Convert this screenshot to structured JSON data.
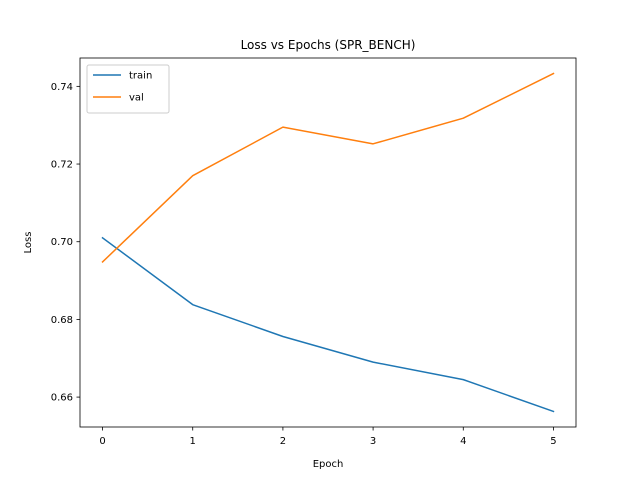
{
  "chart_data": {
    "type": "line",
    "title": "Loss vs Epochs (SPR_BENCH)",
    "xlabel": "Epoch",
    "ylabel": "Loss",
    "x": [
      0,
      1,
      2,
      3,
      4,
      5
    ],
    "xlim": [
      -0.25,
      5.25
    ],
    "ylim": [
      0.6523,
      0.7473
    ],
    "xticks": [
      "0",
      "1",
      "2",
      "3",
      "4",
      "5"
    ],
    "yticks": [
      "0.66",
      "0.68",
      "0.70",
      "0.72",
      "0.74"
    ],
    "grid": false,
    "legend_position": "top-left",
    "series": [
      {
        "name": "train",
        "color": "#1f77b4",
        "values": [
          0.701,
          0.6838,
          0.6756,
          0.669,
          0.6645,
          0.6563
        ]
      },
      {
        "name": "val",
        "color": "#ff7f0e",
        "values": [
          0.6948,
          0.717,
          0.7295,
          0.7252,
          0.7318,
          0.7433
        ]
      }
    ]
  }
}
